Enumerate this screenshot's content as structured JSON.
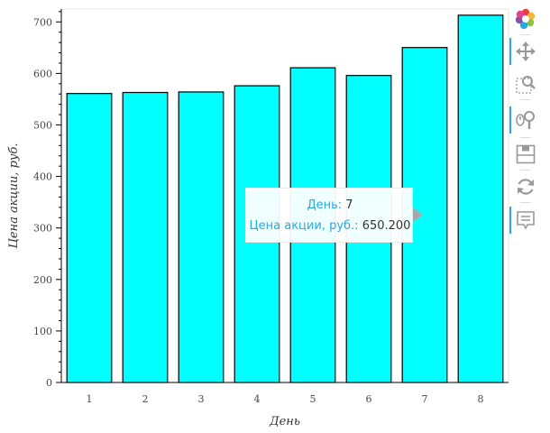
{
  "chart_data": {
    "type": "bar",
    "categories": [
      "1",
      "2",
      "3",
      "4",
      "5",
      "6",
      "7",
      "8"
    ],
    "values": [
      561,
      563,
      564,
      576,
      611,
      596,
      650.2,
      713
    ],
    "title": "",
    "xlabel": "День",
    "ylabel": "Цена акции, руб.",
    "ylim": [
      0,
      725
    ],
    "yticks": [
      "0",
      "100",
      "200",
      "300",
      "400",
      "500",
      "600",
      "700"
    ],
    "grid": false,
    "colors": {
      "bar_fill": "#00ffff",
      "bar_stroke": "#000000",
      "axis": "#000000"
    }
  },
  "tooltip": {
    "rows": [
      {
        "key": "День:",
        "value": "7"
      },
      {
        "key": "Цена акции, руб.:",
        "value": "650.200"
      }
    ]
  },
  "toolbar": {
    "tools": [
      {
        "icon": "bokeh-logo-icon",
        "active": false
      },
      {
        "icon": "pan-icon",
        "active": true
      },
      {
        "icon": "box-zoom-icon",
        "active": false
      },
      {
        "icon": "wheel-zoom-icon",
        "active": true
      },
      {
        "icon": "save-icon",
        "active": false
      },
      {
        "icon": "reset-icon",
        "active": false
      },
      {
        "icon": "hover-icon",
        "active": true
      }
    ]
  }
}
